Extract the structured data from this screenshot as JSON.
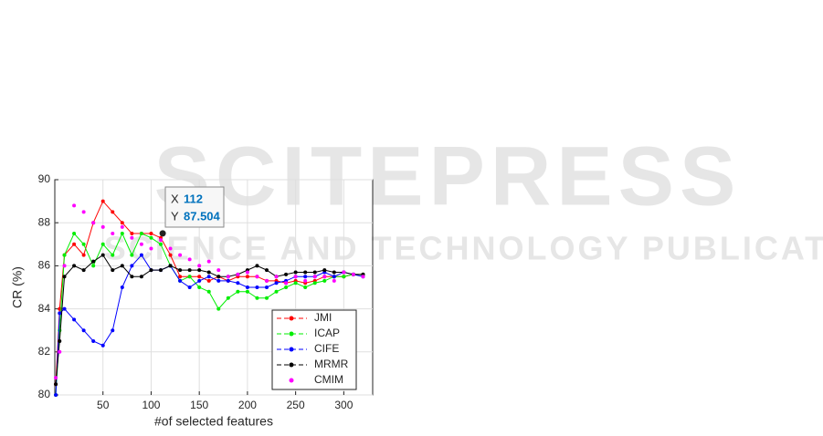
{
  "watermark": {
    "title": "SCITEPRESS",
    "subtitle": "SCIENCE AND TECHNOLOGY PUBLICATIONS"
  },
  "chart_data": {
    "type": "line",
    "xlabel": "#of selected features",
    "ylabel": "CR (%)",
    "x": [
      1,
      5,
      10,
      20,
      30,
      40,
      50,
      60,
      70,
      80,
      90,
      100,
      110,
      120,
      130,
      140,
      150,
      160,
      170,
      180,
      190,
      200,
      210,
      220,
      230,
      240,
      250,
      260,
      270,
      280,
      290,
      300,
      310,
      320
    ],
    "series": [
      {
        "name": "JMI",
        "color": "#ff0000",
        "values": [
          80.5,
          84,
          86.5,
          87,
          86.5,
          88,
          89,
          88.5,
          88,
          87.5,
          87.5,
          87.5,
          87.3,
          86.5,
          85.5,
          85.5,
          85.5,
          85.3,
          85.5,
          85.3,
          85.5,
          85.5,
          85.5,
          85.3,
          85.3,
          85.2,
          85.3,
          85.2,
          85.3,
          85.5,
          85.5,
          85.5,
          85.6,
          85.6
        ]
      },
      {
        "name": "ICAP",
        "color": "#00ee00",
        "values": [
          80,
          83,
          86.5,
          87.5,
          87,
          86,
          87,
          86.5,
          87.5,
          86.5,
          87.5,
          87.3,
          87,
          86,
          85.3,
          85.5,
          85,
          84.8,
          84,
          84.5,
          84.8,
          84.8,
          84.5,
          84.5,
          84.8,
          85,
          85.2,
          85,
          85.2,
          85.3,
          85.5,
          85.5,
          85.6,
          85.6
        ]
      },
      {
        "name": "CIFE",
        "color": "#0000ff",
        "values": [
          80,
          83.8,
          84,
          83.5,
          83,
          82.5,
          82.3,
          83,
          85,
          86,
          86.5,
          85.8,
          85.8,
          86,
          85.3,
          85,
          85.3,
          85.5,
          85.3,
          85.3,
          85.2,
          85,
          85,
          85,
          85.2,
          85.3,
          85.5,
          85.5,
          85.5,
          85.7,
          85.5,
          85.7,
          85.6,
          85.5
        ]
      },
      {
        "name": "MRMR",
        "color": "#000000",
        "values": [
          80.5,
          82.5,
          85.5,
          86,
          85.8,
          86.2,
          86.5,
          85.8,
          86,
          85.5,
          85.5,
          85.8,
          85.8,
          86,
          85.8,
          85.8,
          85.8,
          85.7,
          85.5,
          85.5,
          85.6,
          85.8,
          86,
          85.8,
          85.5,
          85.6,
          85.7,
          85.7,
          85.7,
          85.8,
          85.7,
          85.7,
          85.6,
          85.6
        ]
      },
      {
        "name": "CMIM",
        "color": "#ff00ff",
        "values": [
          80.8,
          82,
          86,
          88.8,
          88.5,
          88,
          87.8,
          87.5,
          87.8,
          87.3,
          87,
          86.8,
          87.2,
          86.8,
          86.5,
          86.3,
          86,
          86.2,
          85.8,
          85.5,
          85.6,
          85.7,
          85.5,
          85.3,
          85.5,
          85.2,
          85.5,
          85.3,
          85.5,
          85.5,
          85.3,
          85.7,
          85.6,
          85.5
        ]
      }
    ],
    "xlim": [
      0,
      330
    ],
    "xticks": [
      50,
      100,
      150,
      200,
      250,
      300
    ],
    "ylim": [
      80,
      90
    ],
    "yticks": [
      80,
      82,
      84,
      86,
      88,
      90
    ],
    "grid": true,
    "legend": "lower right",
    "datatip": {
      "x_label": "X",
      "x": 112,
      "y_label": "Y",
      "y": 87.504
    }
  }
}
